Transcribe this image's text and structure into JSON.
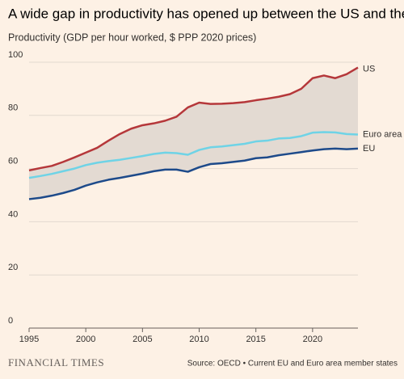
{
  "chart_data": {
    "type": "line",
    "title": "A wide gap in productivity has opened up between the US and the EU",
    "subtitle": "Productivity (GDP per hour worked, $ PPP 2020 prices)",
    "source": "Source: OECD • Current EU and Euro area member states",
    "brand": "FINANCIAL TIMES",
    "x": [
      1995,
      1996,
      1997,
      1998,
      1999,
      2000,
      2001,
      2002,
      2003,
      2004,
      2005,
      2006,
      2007,
      2008,
      2009,
      2010,
      2011,
      2012,
      2013,
      2014,
      2015,
      2016,
      2017,
      2018,
      2019,
      2020,
      2021,
      2022,
      2023,
      2024
    ],
    "xlim": [
      1995,
      2024
    ],
    "xticks": [
      1995,
      2000,
      2005,
      2010,
      2015,
      2020
    ],
    "ylim": [
      0,
      100
    ],
    "yticks": [
      0,
      20,
      40,
      60,
      80,
      100
    ],
    "grid": true,
    "band_color": "#e3dad2",
    "series": [
      {
        "name": "US",
        "color": "#b5373a",
        "values": [
          59.3,
          60.2,
          61,
          62.5,
          64.2,
          66,
          67.8,
          70.5,
          73,
          75,
          76.3,
          77,
          78,
          79.5,
          83,
          84.8,
          84.3,
          84.4,
          84.6,
          85,
          85.7,
          86.3,
          87,
          88,
          90,
          94,
          95,
          94,
          95.5,
          98
        ]
      },
      {
        "name": "Euro area",
        "color": "#6fd3e6",
        "values": [
          56.5,
          57.2,
          58,
          59,
          60,
          61.3,
          62.2,
          62.8,
          63.3,
          64,
          64.7,
          65.5,
          66,
          65.8,
          65.2,
          67,
          68,
          68.3,
          68.8,
          69.3,
          70.2,
          70.5,
          71.3,
          71.5,
          72.2,
          73.5,
          73.7,
          73.6,
          73,
          72.8
        ]
      },
      {
        "name": "EU",
        "color": "#1d4a8a",
        "values": [
          48.5,
          49,
          49.8,
          50.8,
          52,
          53.6,
          54.8,
          55.8,
          56.5,
          57.3,
          58.1,
          59,
          59.6,
          59.6,
          58.8,
          60.5,
          61.7,
          62,
          62.5,
          63,
          63.9,
          64.2,
          65,
          65.6,
          66.2,
          66.8,
          67.3,
          67.5,
          67.3,
          67.5
        ]
      }
    ]
  }
}
